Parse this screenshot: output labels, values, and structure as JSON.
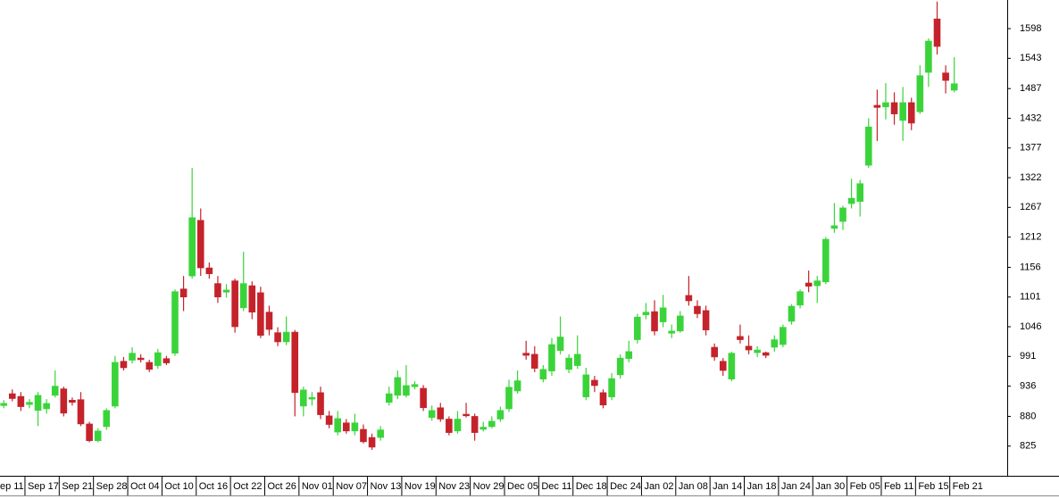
{
  "chart_data": {
    "type": "candlestick",
    "categories": [
      "Sep 11",
      null,
      null,
      null,
      "Sep 17",
      null,
      null,
      null,
      "Sep 21",
      null,
      null,
      null,
      "Sep 28",
      null,
      null,
      null,
      "Oct 04",
      null,
      null,
      null,
      "Oct 10",
      null,
      null,
      null,
      "Oct 16",
      null,
      null,
      null,
      "Oct 22",
      null,
      null,
      null,
      "Oct 26",
      null,
      null,
      null,
      "Nov 01",
      null,
      null,
      null,
      "Nov 07",
      null,
      null,
      null,
      "Nov 13",
      null,
      null,
      null,
      "Nov 19",
      null,
      null,
      null,
      "Nov 23",
      null,
      null,
      null,
      "Nov 29",
      null,
      null,
      null,
      "Dec 05",
      null,
      null,
      null,
      "Dec 11",
      null,
      null,
      null,
      "Dec 18",
      null,
      null,
      null,
      "Dec 24",
      null,
      null,
      null,
      "Jan 02",
      null,
      null,
      null,
      "Jan 08",
      null,
      null,
      null,
      "Jan 14",
      null,
      null,
      null,
      "Jan 18",
      null,
      null,
      null,
      "Jan 24",
      null,
      null,
      null,
      "Jan 30",
      null,
      null,
      null,
      "Feb 05",
      null,
      null,
      null,
      "Feb 11",
      null,
      null,
      null,
      "Feb 15",
      null,
      null,
      null,
      "Feb 21"
    ],
    "open": [
      900,
      900,
      922,
      917,
      902,
      891,
      894,
      919,
      931,
      910,
      911,
      866,
      835,
      861,
      899,
      982,
      984,
      988,
      980,
      974,
      987,
      997,
      1116,
      1140,
      1243,
      1155,
      1126,
      1110,
      1131,
      1081,
      1122,
      1109,
      1073,
      1035,
      1018,
      1036,
      899,
      912,
      924,
      881,
      851,
      868,
      853,
      856,
      841,
      841,
      906,
      919,
      919,
      935,
      932,
      878,
      896,
      875,
      853,
      884,
      880,
      856,
      861,
      875,
      894,
      927,
      997,
      995,
      949,
      964,
      1002,
      967,
      974,
      916,
      947,
      924,
      916,
      957,
      987,
      1022,
      1068,
      1074,
      1055,
      1034,
      1038,
      1104,
      1084,
      1076,
      1008,
      982,
      949,
      1028,
      1010,
      998,
      998,
      1008,
      1013,
      1056,
      1086,
      1127,
      1122,
      1129,
      1228,
      1241,
      1274,
      1278,
      1345,
      1456,
      1453,
      1461,
      1428,
      1461,
      1444,
      1517,
      1616,
      1516,
      1484
    ],
    "high": [
      912,
      910,
      930,
      925,
      912,
      925,
      912,
      965,
      935,
      915,
      925,
      870,
      858,
      895,
      992,
      990,
      1008,
      995,
      985,
      1005,
      992,
      1115,
      1140,
      1340,
      1265,
      1165,
      1140,
      1125,
      1135,
      1185,
      1130,
      1120,
      1085,
      1045,
      1065,
      1040,
      935,
      925,
      935,
      890,
      890,
      875,
      885,
      865,
      848,
      862,
      935,
      965,
      975,
      945,
      938,
      900,
      905,
      880,
      890,
      905,
      885,
      870,
      880,
      898,
      948,
      965,
      1020,
      1010,
      975,
      1025,
      1065,
      995,
      1030,
      970,
      955,
      930,
      960,
      995,
      1020,
      1070,
      1090,
      1095,
      1105,
      1050,
      1075,
      1140,
      1095,
      1085,
      1015,
      988,
      1000,
      1050,
      1030,
      1010,
      1000,
      1030,
      1050,
      1088,
      1115,
      1150,
      1140,
      1212,
      1275,
      1270,
      1320,
      1318,
      1432,
      1485,
      1497,
      1480,
      1490,
      1470,
      1530,
      1580,
      1648,
      1530,
      1545
    ],
    "low": [
      895,
      895,
      908,
      890,
      895,
      862,
      885,
      915,
      880,
      900,
      862,
      832,
      832,
      855,
      895,
      965,
      978,
      980,
      962,
      968,
      975,
      992,
      1075,
      1135,
      1140,
      1135,
      1090,
      1100,
      1035,
      1075,
      1060,
      1025,
      1030,
      1010,
      1012,
      880,
      880,
      900,
      875,
      858,
      845,
      848,
      845,
      830,
      818,
      835,
      900,
      912,
      915,
      930,
      890,
      872,
      870,
      845,
      848,
      878,
      835,
      852,
      858,
      870,
      888,
      922,
      985,
      962,
      943,
      955,
      995,
      960,
      968,
      910,
      925,
      895,
      910,
      950,
      980,
      1015,
      1060,
      1030,
      1045,
      1025,
      1035,
      1085,
      1062,
      1030,
      983,
      955,
      945,
      1015,
      995,
      990,
      988,
      1000,
      1008,
      1050,
      1080,
      1110,
      1090,
      1125,
      1220,
      1225,
      1265,
      1250,
      1340,
      1390,
      1430,
      1420,
      1390,
      1410,
      1440,
      1490,
      1550,
      1478,
      1480
    ],
    "close": [
      905,
      904,
      913,
      898,
      906,
      919,
      904,
      936,
      886,
      906,
      866,
      835,
      853,
      891,
      980,
      970,
      997,
      985,
      967,
      998,
      979,
      1111,
      1101,
      1248,
      1155,
      1144,
      1101,
      1114,
      1046,
      1126,
      1073,
      1030,
      1041,
      1018,
      1036,
      924,
      929,
      915,
      883,
      865,
      876,
      853,
      868,
      833,
      823,
      855,
      922,
      952,
      937,
      939,
      896,
      891,
      875,
      850,
      875,
      881,
      850,
      860,
      871,
      891,
      934,
      946,
      993,
      969,
      967,
      1013,
      1027,
      988,
      995,
      957,
      937,
      901,
      950,
      988,
      1000,
      1064,
      1073,
      1038,
      1081,
      1038,
      1066,
      1094,
      1070,
      1040,
      990,
      965,
      997,
      1022,
      1003,
      1003,
      993,
      1022,
      1045,
      1084,
      1111,
      1121,
      1131,
      1208,
      1233,
      1266,
      1284,
      1311,
      1416,
      1452,
      1461,
      1440,
      1461,
      1423,
      1511,
      1575,
      1565,
      1502,
      1496
    ],
    "up_color": "#3ad43a",
    "down_color": "#c4232b",
    "ylim": [
      770,
      1651
    ],
    "yticks": [
      825,
      880,
      936,
      991,
      1046,
      1101,
      1156,
      1212,
      1267,
      1322,
      1377,
      1432,
      1487,
      1543,
      1598
    ]
  }
}
